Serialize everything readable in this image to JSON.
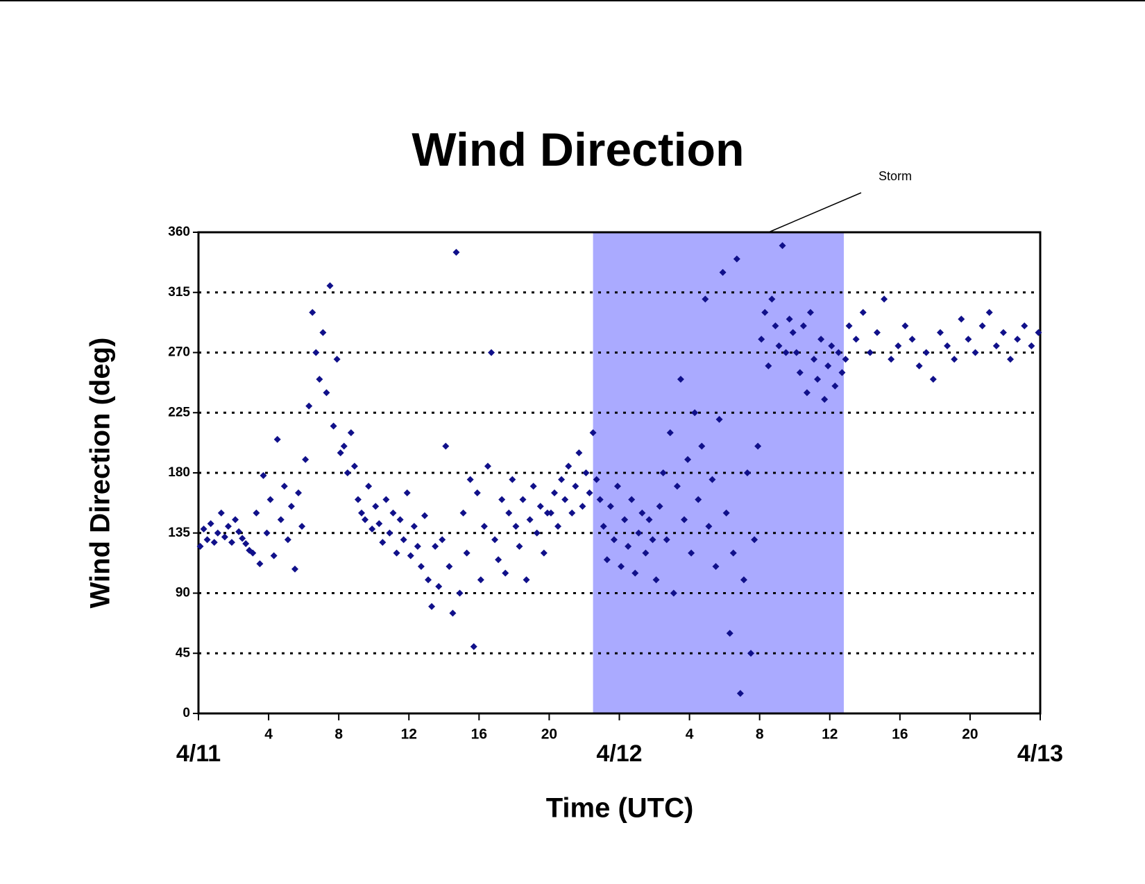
{
  "chart_data": {
    "type": "scatter",
    "title": "Wind Direction",
    "x_label": "Time (UTC)",
    "y_label": "Wind Direction (deg)",
    "xlim": [
      0,
      48
    ],
    "ylim": [
      0,
      360
    ],
    "yticks": [
      0,
      45,
      90,
      135,
      180,
      225,
      270,
      315,
      360
    ],
    "xticks": [
      4,
      8,
      12,
      16,
      20,
      {
        "value": 28,
        "label": "4"
      },
      {
        "value": 32,
        "label": "8"
      },
      {
        "value": 36,
        "label": "12"
      },
      {
        "value": 40,
        "label": "16"
      },
      {
        "value": 44,
        "label": "20"
      }
    ],
    "xdate_ticks": [
      {
        "value": 0,
        "label": "4/11"
      },
      {
        "value": 24,
        "label": "4/12"
      },
      {
        "value": 48,
        "label": "4/13"
      }
    ],
    "grid": true,
    "shaded_region": {
      "x": [
        22.5,
        36.8
      ],
      "label": "Storm",
      "color": "#aaaaff"
    },
    "series": [
      {
        "name": "Wind Direction",
        "color": "#10108a",
        "x": [
          0.1,
          0.3,
          0.5,
          0.7,
          0.9,
          1.1,
          1.3,
          1.5,
          1.7,
          1.9,
          2.1,
          2.3,
          2.5,
          2.7,
          2.9,
          3.1,
          3.3,
          3.5,
          3.7,
          3.9,
          4.1,
          4.3,
          4.5,
          4.7,
          4.9,
          5.1,
          5.3,
          5.5,
          5.7,
          5.9,
          6.1,
          6.3,
          6.5,
          6.7,
          6.9,
          7.1,
          7.3,
          7.5,
          7.7,
          7.9,
          8.1,
          8.3,
          8.5,
          8.7,
          8.9,
          9.1,
          9.3,
          9.5,
          9.7,
          9.9,
          10.1,
          10.3,
          10.5,
          10.7,
          10.9,
          11.1,
          11.3,
          11.5,
          11.7,
          11.9,
          12.1,
          12.3,
          12.5,
          12.7,
          12.9,
          13.1,
          13.3,
          13.5,
          13.7,
          13.9,
          14.1,
          14.3,
          14.5,
          14.7,
          14.9,
          15.1,
          15.3,
          15.5,
          15.7,
          15.9,
          16.1,
          16.3,
          16.5,
          16.7,
          16.9,
          17.1,
          17.3,
          17.5,
          17.7,
          17.9,
          18.1,
          18.3,
          18.5,
          18.7,
          18.9,
          19.1,
          19.3,
          19.5,
          19.7,
          19.9,
          20.1,
          20.3,
          20.5,
          20.7,
          20.9,
          21.1,
          21.3,
          21.5,
          21.7,
          21.9,
          22.1,
          22.3,
          22.5,
          22.7,
          22.9,
          23.1,
          23.3,
          23.5,
          23.7,
          23.9,
          24.1,
          24.3,
          24.5,
          24.7,
          24.9,
          25.1,
          25.3,
          25.5,
          25.7,
          25.9,
          26.1,
          26.3,
          26.5,
          26.7,
          26.9,
          27.1,
          27.3,
          27.5,
          27.7,
          27.9,
          28.1,
          28.3,
          28.5,
          28.7,
          28.9,
          29.1,
          29.3,
          29.5,
          29.7,
          29.9,
          30.1,
          30.3,
          30.5,
          30.7,
          30.9,
          31.1,
          31.3,
          31.5,
          31.7,
          31.9,
          32.1,
          32.3,
          32.5,
          32.7,
          32.9,
          33.1,
          33.3,
          33.5,
          33.7,
          33.9,
          34.1,
          34.3,
          34.5,
          34.7,
          34.9,
          35.1,
          35.3,
          35.5,
          35.7,
          35.9,
          36.1,
          36.3,
          36.5,
          36.7,
          36.9,
          37.1,
          37.5,
          37.9,
          38.3,
          38.7,
          39.1,
          39.5,
          39.9,
          40.3,
          40.7,
          41.1,
          41.5,
          41.9,
          42.3,
          42.7,
          43.1,
          43.5,
          43.9,
          44.3,
          44.7,
          45.1,
          45.5,
          45.9,
          46.3,
          46.7,
          47.1,
          47.5,
          47.9
        ],
        "values": [
          125,
          138,
          130,
          142,
          128,
          135,
          150,
          132,
          140,
          128,
          145,
          136,
          131,
          127,
          122,
          120,
          150,
          112,
          178,
          135,
          160,
          118,
          205,
          145,
          170,
          130,
          155,
          108,
          165,
          140,
          190,
          230,
          300,
          270,
          250,
          285,
          240,
          320,
          215,
          265,
          195,
          200,
          180,
          210,
          185,
          160,
          150,
          145,
          170,
          138,
          155,
          142,
          128,
          160,
          135,
          150,
          120,
          145,
          130,
          165,
          118,
          140,
          125,
          110,
          148,
          100,
          80,
          125,
          95,
          130,
          200,
          110,
          75,
          345,
          90,
          150,
          120,
          175,
          50,
          165,
          100,
          140,
          185,
          270,
          130,
          115,
          160,
          105,
          150,
          175,
          140,
          125,
          160,
          100,
          145,
          170,
          135,
          155,
          120,
          150,
          150,
          165,
          140,
          175,
          160,
          185,
          150,
          170,
          195,
          155,
          180,
          165,
          210,
          175,
          160,
          140,
          115,
          155,
          130,
          170,
          110,
          145,
          125,
          160,
          105,
          135,
          150,
          120,
          145,
          130,
          100,
          155,
          180,
          130,
          210,
          90,
          170,
          250,
          145,
          190,
          120,
          225,
          160,
          200,
          310,
          140,
          175,
          110,
          220,
          330,
          150,
          60,
          120,
          340,
          15,
          100,
          180,
          45,
          130,
          200,
          280,
          300,
          260,
          310,
          290,
          275,
          350,
          270,
          295,
          285,
          270,
          255,
          290,
          240,
          300,
          265,
          250,
          280,
          235,
          260,
          275,
          245,
          270,
          255,
          265,
          290,
          280,
          300,
          270,
          285,
          310,
          265,
          275,
          290,
          280,
          260,
          270,
          250,
          285,
          275,
          265,
          295,
          280,
          270,
          290,
          300,
          275,
          285,
          265,
          280,
          290,
          275,
          285
        ]
      }
    ]
  }
}
